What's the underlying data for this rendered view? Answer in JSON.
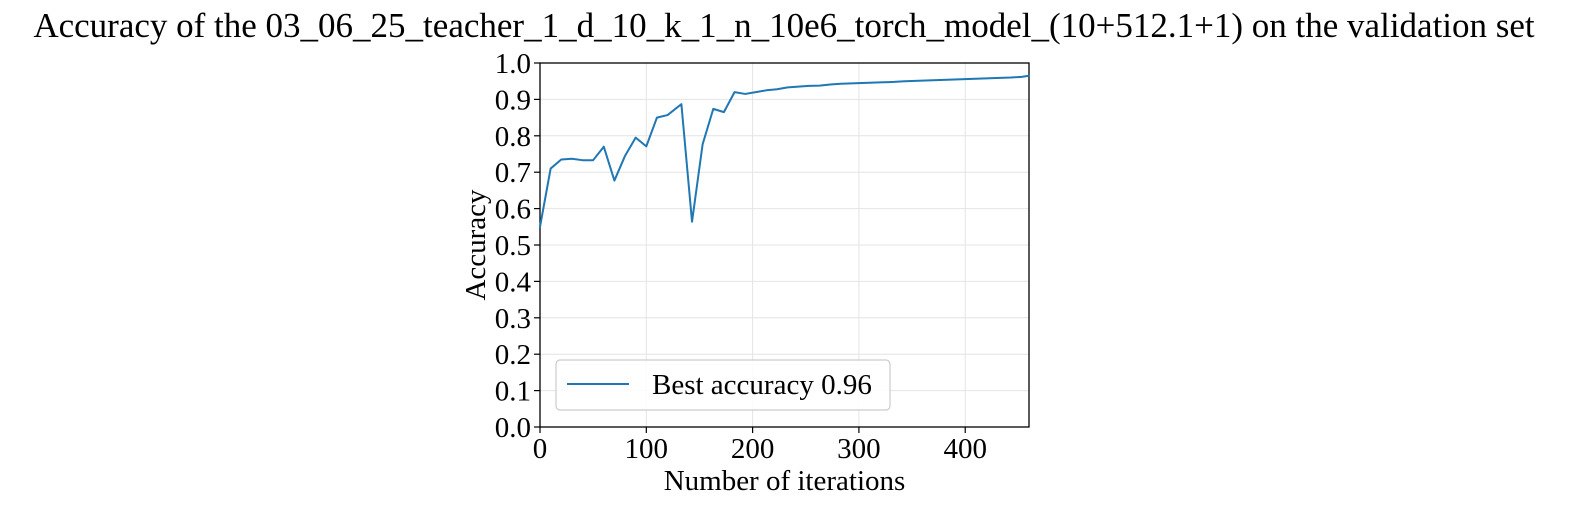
{
  "chart_data": {
    "type": "line",
    "title": "Accuracy of the 03_06_25_teacher_1_d_10_k_1_n_10e6_torch_model_(10+512.1+1) on the validation set",
    "xlabel": "Number of iterations",
    "ylabel": "Accuracy",
    "xlim": [
      0,
      460
    ],
    "ylim": [
      0.0,
      1.0
    ],
    "xticks": [
      0,
      100,
      200,
      300,
      400
    ],
    "xtick_labels": [
      "0",
      "100",
      "200",
      "300",
      "400"
    ],
    "yticks": [
      0.0,
      0.1,
      0.2,
      0.3,
      0.4,
      0.5,
      0.6,
      0.7,
      0.8,
      0.9,
      1.0
    ],
    "ytick_labels": [
      "0.0",
      "0.1",
      "0.2",
      "0.3",
      "0.4",
      "0.5",
      "0.6",
      "0.7",
      "0.8",
      "0.9",
      "1.0"
    ],
    "grid": true,
    "legend_position": "lower-left",
    "series": [
      {
        "name": "Best accuracy 0.96",
        "color": "#1f77b4",
        "x": [
          0,
          10,
          20,
          30,
          40,
          50,
          60,
          70,
          80,
          90,
          100,
          110,
          120,
          133,
          143,
          153,
          163,
          173,
          183,
          193,
          203,
          213,
          223,
          233,
          243,
          253,
          263,
          273,
          283,
          293,
          303,
          313,
          323,
          333,
          343,
          353,
          363,
          373,
          383,
          393,
          403,
          413,
          423,
          433,
          443,
          453,
          460
        ],
        "y": [
          0.55,
          0.71,
          0.735,
          0.737,
          0.733,
          0.733,
          0.77,
          0.677,
          0.745,
          0.795,
          0.771,
          0.85,
          0.857,
          0.887,
          0.564,
          0.777,
          0.874,
          0.865,
          0.92,
          0.915,
          0.92,
          0.925,
          0.928,
          0.933,
          0.935,
          0.937,
          0.938,
          0.941,
          0.943,
          0.944,
          0.945,
          0.946,
          0.947,
          0.948,
          0.95,
          0.951,
          0.952,
          0.953,
          0.954,
          0.955,
          0.956,
          0.957,
          0.958,
          0.959,
          0.96,
          0.962,
          0.965
        ]
      }
    ]
  }
}
